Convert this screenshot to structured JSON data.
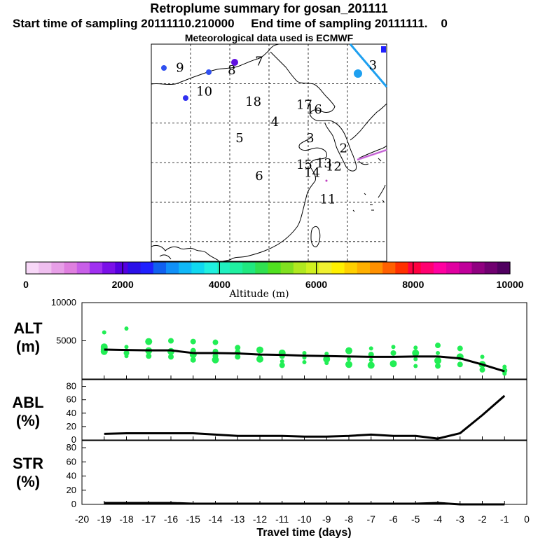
{
  "header": {
    "title": "Retroplume summary for gosan_201111",
    "sampling": "Start time of sampling 20111110.210000     End time of sampling 20111111.    0",
    "met": "Meteorological data used is ECMWF"
  },
  "map": {
    "day_labels": [
      {
        "text": "3",
        "lon": 141.5,
        "lat": 51.8
      },
      {
        "text": "9",
        "lon": 92.3,
        "lat": 51.5
      },
      {
        "text": "8",
        "lon": 105.5,
        "lat": 51.2
      },
      {
        "text": "7",
        "lon": 112.5,
        "lat": 52.3
      },
      {
        "text": "10",
        "lon": 98.5,
        "lat": 48.5
      },
      {
        "text": "18",
        "lon": 111.0,
        "lat": 47.2
      },
      {
        "text": "17",
        "lon": 124.0,
        "lat": 46.8
      },
      {
        "text": "16",
        "lon": 126.5,
        "lat": 46.2
      },
      {
        "text": "4",
        "lon": 116.5,
        "lat": 44.6
      },
      {
        "text": "5",
        "lon": 107.5,
        "lat": 42.6
      },
      {
        "text": "3",
        "lon": 125.5,
        "lat": 42.6
      },
      {
        "text": "2",
        "lon": 134.0,
        "lat": 41.3
      },
      {
        "text": "15",
        "lon": 124.0,
        "lat": 39.2
      },
      {
        "text": "13",
        "lon": 129.0,
        "lat": 39.4
      },
      {
        "text": "12",
        "lon": 131.5,
        "lat": 39.0
      },
      {
        "text": "14",
        "lon": 126.0,
        "lat": 38.2
      },
      {
        "text": "6",
        "lon": 112.5,
        "lat": 37.8
      },
      {
        "text": "11",
        "lon": 130.0,
        "lat": 34.8
      }
    ]
  },
  "colorbar": {
    "tick_labels": [
      "0",
      "2000",
      "4000",
      "6000",
      "8000",
      "10000"
    ],
    "label": "Altitude (m)",
    "colors": [
      "#f7d7f7",
      "#efbfef",
      "#e79fe7",
      "#df7fdf",
      "#c85fe8",
      "#a030f0",
      "#7a10e8",
      "#5500e0",
      "#2b10e8",
      "#2020ff",
      "#1060f0",
      "#1090f8",
      "#10b8f8",
      "#10d8f0",
      "#20f0e0",
      "#20f0c0",
      "#20f0a0",
      "#20e880",
      "#30e050",
      "#50e020",
      "#80e020",
      "#b0e820",
      "#d0f020",
      "#f0f030",
      "#fff000",
      "#ffd000",
      "#ffb000",
      "#ff9000",
      "#ff6000",
      "#ff3000",
      "#ff0040",
      "#ff0070",
      "#ff00a0",
      "#e000a0",
      "#c0009a",
      "#900080",
      "#700070",
      "#500060"
    ]
  },
  "chart_data": [
    {
      "type": "line",
      "panel": "ALT",
      "ylabel": "ALT\n(m)",
      "label_line1": "ALT",
      "label_line2": "(m)",
      "ylim": [
        0,
        10000
      ],
      "yticks": [
        "10000",
        "5000"
      ],
      "x": [
        -19,
        -18,
        -17,
        -16,
        -15,
        -14,
        -13,
        -12,
        -11,
        -10,
        -9,
        -8,
        -7,
        -6,
        -5,
        -4,
        -3,
        -2,
        -1
      ],
      "values": [
        3850,
        3800,
        3750,
        3750,
        3400,
        3400,
        3350,
        3200,
        3150,
        3050,
        3000,
        2950,
        2900,
        2900,
        2950,
        2950,
        2700,
        1900,
        1000
      ],
      "scatter": [
        [
          -19,
          6100
        ],
        [
          -19,
          4200
        ],
        [
          -19,
          3600
        ],
        [
          -19,
          3900
        ],
        [
          -18,
          6600
        ],
        [
          -18,
          4200
        ],
        [
          -18,
          3400
        ],
        [
          -18,
          3000
        ],
        [
          -17,
          4900
        ],
        [
          -17,
          3700
        ],
        [
          -17,
          3000
        ],
        [
          -16,
          5000
        ],
        [
          -16,
          3600
        ],
        [
          -16,
          2900
        ],
        [
          -15,
          4900
        ],
        [
          -15,
          3700
        ],
        [
          -15,
          3200
        ],
        [
          -15,
          2500
        ],
        [
          -14,
          4800
        ],
        [
          -14,
          3600
        ],
        [
          -14,
          3000
        ],
        [
          -14,
          2500
        ],
        [
          -13,
          4100
        ],
        [
          -13,
          3500
        ],
        [
          -13,
          2900
        ],
        [
          -12,
          3800
        ],
        [
          -12,
          3000
        ],
        [
          -12,
          2600
        ],
        [
          -11,
          3400
        ],
        [
          -11,
          3000
        ],
        [
          -11,
          2300
        ],
        [
          -11,
          1800
        ],
        [
          -10,
          3400
        ],
        [
          -10,
          2800
        ],
        [
          -10,
          2200
        ],
        [
          -9,
          3300
        ],
        [
          -9,
          2600
        ],
        [
          -9,
          2100
        ],
        [
          -8,
          3700
        ],
        [
          -8,
          2600
        ],
        [
          -8,
          1900
        ],
        [
          -7,
          4000
        ],
        [
          -7,
          3200
        ],
        [
          -7,
          2500
        ],
        [
          -7,
          1800
        ],
        [
          -6,
          4200
        ],
        [
          -6,
          3400
        ],
        [
          -6,
          2000
        ],
        [
          -5,
          4100
        ],
        [
          -5,
          3400
        ],
        [
          -5,
          2600
        ],
        [
          -5,
          1700
        ],
        [
          -4,
          4400
        ],
        [
          -4,
          3400
        ],
        [
          -4,
          2400
        ],
        [
          -4,
          1700
        ],
        [
          -3,
          4000
        ],
        [
          -3,
          2900
        ],
        [
          -3,
          1900
        ],
        [
          -2,
          2900
        ],
        [
          -2,
          1900
        ],
        [
          -2,
          1200
        ],
        [
          -1,
          1600
        ],
        [
          -1,
          1100
        ],
        [
          -1,
          700
        ]
      ],
      "scatter_color": "#22ee55",
      "line_color": "#000000"
    },
    {
      "type": "line",
      "panel": "ABL",
      "ylabel": "ABL\n(%)",
      "label_line1": "ABL",
      "label_line2": "(%)",
      "ylim": [
        0,
        90
      ],
      "yticks": [
        "80",
        "60",
        "40",
        "20",
        "0"
      ],
      "x": [
        -19,
        -18,
        -17,
        -16,
        -15,
        -14,
        -13,
        -12,
        -11,
        -10,
        -9,
        -8,
        -7,
        -6,
        -5,
        -4,
        -3,
        -2,
        -1
      ],
      "values": [
        9,
        10,
        10,
        10,
        10,
        8,
        6,
        6,
        6,
        5,
        5,
        6,
        8,
        6,
        6,
        2,
        10,
        37,
        66
      ]
    },
    {
      "type": "line",
      "panel": "STR",
      "ylabel": "STR\n(%)",
      "label_line1": "STR",
      "label_line2": "(%)",
      "ylim": [
        0,
        90
      ],
      "yticks": [
        "80",
        "60",
        "40",
        "20",
        "0"
      ],
      "x": [
        -19,
        -18,
        -17,
        -16,
        -15,
        -14,
        -13,
        -12,
        -11,
        -10,
        -9,
        -8,
        -7,
        -6,
        -5,
        -4,
        -3,
        -2,
        -1
      ],
      "values": [
        2,
        2,
        2,
        2,
        1,
        1,
        1,
        1,
        1,
        1,
        1,
        1,
        1,
        1,
        1,
        2,
        0,
        0,
        0
      ]
    }
  ],
  "xaxis": {
    "ticks": [
      "-20",
      "-19",
      "-18",
      "-17",
      "-16",
      "-15",
      "-14",
      "-13",
      "-12",
      "-11",
      "-10",
      "-9",
      "-8",
      "-7",
      "-6",
      "-5",
      "-4",
      "-3",
      "-2",
      "-1",
      "0"
    ],
    "label": "Travel time (days)",
    "min": -20,
    "max": 0
  }
}
